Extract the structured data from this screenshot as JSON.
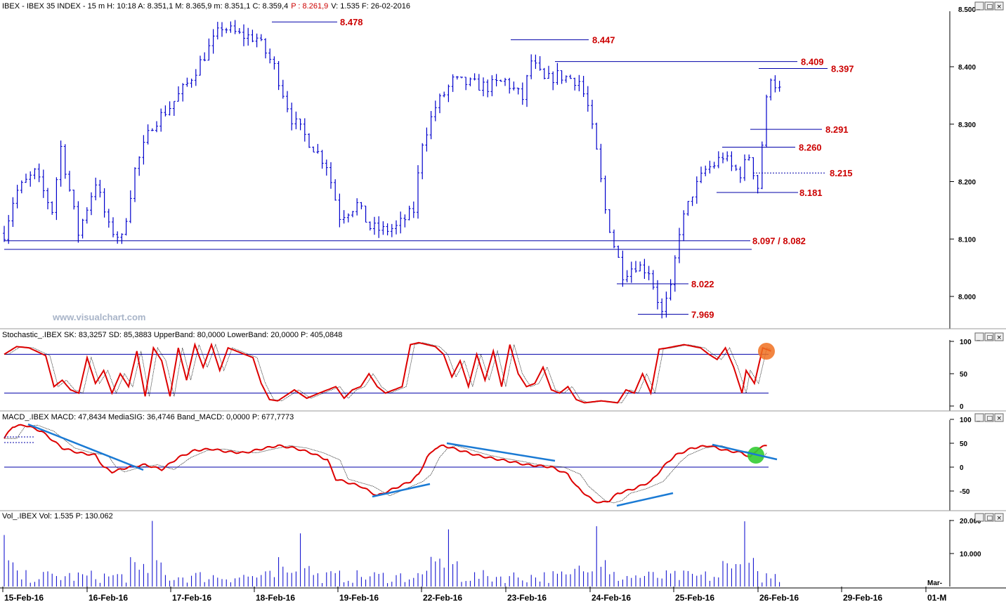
{
  "header": {
    "title": "IBEX - IBEX 35 INDEX -  15 m  H: 10:18  A: 8.351,1  M: 8.365,9  m: 8.351,1  C: 8.359,4",
    "pct": "P : 8.261,9",
    "rest": "V: 1.535  F: 26-02-2016"
  },
  "watermark": "www.visualchart.com",
  "colors": {
    "price_bars": "#0000cc",
    "level_lines": "#0000aa",
    "level_labels": "#cc0000",
    "indicator_main": "#dd0000",
    "indicator_signal": "#000000",
    "trendlines": "#1a7ad4",
    "stoch_marker": "#f07020",
    "macd_marker": "#33cc33"
  },
  "price_axis": [
    "8.500",
    "8.400",
    "8.300",
    "8.200",
    "8.100",
    "8.000"
  ],
  "levels": [
    "8.478",
    "8.447",
    "8.409",
    "8.397",
    "8.291",
    "8.260",
    "8.215",
    "8.181",
    "8.097 / 8.082",
    "8.022",
    "7.969"
  ],
  "dates": [
    "15-Feb-16",
    "16-Feb-16",
    "17-Feb-16",
    "18-Feb-16",
    "19-Feb-16",
    "22-Feb-16",
    "23-Feb-16",
    "24-Feb-16",
    "25-Feb-16",
    "26-Feb-16",
    "29-Feb-16",
    "01-M"
  ],
  "date_extra": "Mar-",
  "stochastic": {
    "title": "Stochastic_.IBEX SK: 83,3257  SD: 85,3883  UpperBand: 80,0000  LowerBand: 20,0000  P: 405,0848",
    "axis": [
      "100",
      "50",
      "0"
    ]
  },
  "macd": {
    "title": "MACD_.IBEX MACD: 47,8434  MediaSIG: 36,4746  Band_MACD: 0,0000  P: 677,7773",
    "axis": [
      "100",
      "50",
      "0",
      "-50"
    ]
  },
  "volume": {
    "title": "Vol_.IBEX Vol: 1.535  P: 130.062",
    "axis": [
      "20.000",
      "10.000"
    ]
  },
  "window_buttons": [
    "_",
    "□",
    "×"
  ],
  "chart_data": {
    "type": "ohlc",
    "interval": "15 m",
    "x": [
      "15-Feb-16",
      "16-Feb-16",
      "17-Feb-16",
      "18-Feb-16",
      "19-Feb-16",
      "22-Feb-16",
      "23-Feb-16",
      "24-Feb-16",
      "25-Feb-16",
      "26-Feb-16"
    ],
    "path": [
      [
        0,
        8110
      ],
      [
        2.5,
        8180
      ],
      [
        7,
        8215
      ],
      [
        11,
        8150
      ],
      [
        13,
        8260
      ],
      [
        17,
        8110
      ],
      [
        21,
        8200
      ],
      [
        24,
        8120
      ],
      [
        27,
        8100
      ],
      [
        30,
        8220
      ],
      [
        34,
        8300
      ],
      [
        38,
        8330
      ],
      [
        42,
        8370
      ],
      [
        46,
        8420
      ],
      [
        50,
        8470
      ],
      [
        54,
        8455
      ],
      [
        58,
        8450
      ],
      [
        62,
        8400
      ],
      [
        66,
        8310
      ],
      [
        70,
        8270
      ],
      [
        74,
        8230
      ],
      [
        77,
        8140
      ],
      [
        81,
        8160
      ],
      [
        84,
        8120
      ],
      [
        87,
        8115
      ],
      [
        90,
        8120
      ],
      [
        94,
        8150
      ],
      [
        96,
        8270
      ],
      [
        99,
        8330
      ],
      [
        103,
        8375
      ],
      [
        107,
        8370
      ],
      [
        111,
        8365
      ],
      [
        115,
        8375
      ],
      [
        119,
        8345
      ],
      [
        121,
        8410
      ],
      [
        124,
        8375
      ],
      [
        127,
        8385
      ],
      [
        130,
        8380
      ],
      [
        132,
        8375
      ],
      [
        134,
        8330
      ],
      [
        136,
        8250
      ],
      [
        138,
        8150
      ],
      [
        140,
        8090
      ],
      [
        142,
        8040
      ],
      [
        145,
        8055
      ],
      [
        148,
        8045
      ],
      [
        149,
        8020
      ],
      [
        151,
        7970
      ],
      [
        153,
        8010
      ],
      [
        155,
        8115
      ],
      [
        158,
        8180
      ],
      [
        161,
        8220
      ],
      [
        163,
        8230
      ],
      [
        165,
        8245
      ],
      [
        167,
        8225
      ],
      [
        169,
        8215
      ],
      [
        171,
        8245
      ],
      [
        173,
        8191
      ],
      [
        175,
        8340
      ],
      [
        176,
        8385
      ],
      [
        177,
        8370
      ],
      [
        178,
        8359
      ]
    ],
    "levels": [
      8478,
      8447,
      8409,
      8397,
      8291,
      8260,
      8215,
      8181,
      8097,
      8082,
      8022,
      7969
    ],
    "stochastic": {
      "sk_last": 83.3257,
      "sd_last": 85.3883,
      "upper_band": 80,
      "lower_band": 20,
      "ylim": [
        0,
        100
      ],
      "path": [
        [
          0,
          80
        ],
        [
          3,
          92
        ],
        [
          6,
          90
        ],
        [
          10,
          78
        ],
        [
          12,
          30
        ],
        [
          14,
          40
        ],
        [
          16,
          25
        ],
        [
          18,
          20
        ],
        [
          20,
          75
        ],
        [
          22,
          35
        ],
        [
          24,
          55
        ],
        [
          26,
          20
        ],
        [
          28,
          50
        ],
        [
          30,
          30
        ],
        [
          32,
          85
        ],
        [
          34,
          15
        ],
        [
          36,
          90
        ],
        [
          38,
          70
        ],
        [
          40,
          15
        ],
        [
          42,
          90
        ],
        [
          44,
          40
        ],
        [
          46,
          95
        ],
        [
          48,
          60
        ],
        [
          50,
          95
        ],
        [
          52,
          55
        ],
        [
          54,
          90
        ],
        [
          56,
          85
        ],
        [
          60,
          75
        ],
        [
          62,
          35
        ],
        [
          64,
          10
        ],
        [
          66,
          8
        ],
        [
          70,
          25
        ],
        [
          73,
          12
        ],
        [
          76,
          20
        ],
        [
          80,
          30
        ],
        [
          82,
          12
        ],
        [
          84,
          25
        ],
        [
          86,
          30
        ],
        [
          88,
          50
        ],
        [
          90,
          30
        ],
        [
          92,
          20
        ],
        [
          94,
          25
        ],
        [
          96,
          30
        ],
        [
          98,
          95
        ],
        [
          100,
          98
        ],
        [
          104,
          92
        ],
        [
          106,
          80
        ],
        [
          108,
          45
        ],
        [
          110,
          70
        ],
        [
          112,
          30
        ],
        [
          114,
          80
        ],
        [
          116,
          40
        ],
        [
          118,
          85
        ],
        [
          120,
          30
        ],
        [
          122,
          95
        ],
        [
          124,
          50
        ],
        [
          126,
          30
        ],
        [
          128,
          35
        ],
        [
          130,
          60
        ],
        [
          132,
          25
        ],
        [
          134,
          20
        ],
        [
          136,
          30
        ],
        [
          138,
          10
        ],
        [
          140,
          5
        ],
        [
          144,
          8
        ],
        [
          148,
          5
        ],
        [
          150,
          25
        ],
        [
          152,
          20
        ],
        [
          154,
          50
        ],
        [
          156,
          20
        ],
        [
          158,
          88
        ],
        [
          160,
          90
        ],
        [
          164,
          95
        ],
        [
          168,
          90
        ],
        [
          170,
          80
        ],
        [
          172,
          72
        ],
        [
          174,
          90
        ],
        [
          176,
          60
        ],
        [
          178,
          20
        ],
        [
          179,
          55
        ],
        [
          181,
          35
        ],
        [
          183,
          90
        ],
        [
          185,
          85
        ]
      ]
    },
    "macd": {
      "macd_last": 47.8434,
      "signal_last": 36.4746,
      "band": 0,
      "ylim": [
        -80,
        100
      ],
      "path": [
        [
          0,
          60
        ],
        [
          2,
          85
        ],
        [
          5,
          88
        ],
        [
          9,
          75
        ],
        [
          14,
          40
        ],
        [
          18,
          30
        ],
        [
          22,
          25
        ],
        [
          24,
          0
        ],
        [
          26,
          -10
        ],
        [
          28,
          -5
        ],
        [
          30,
          0
        ],
        [
          34,
          5
        ],
        [
          38,
          -5
        ],
        [
          42,
          20
        ],
        [
          46,
          35
        ],
        [
          50,
          38
        ],
        [
          54,
          32
        ],
        [
          58,
          30
        ],
        [
          62,
          38
        ],
        [
          66,
          45
        ],
        [
          70,
          40
        ],
        [
          74,
          30
        ],
        [
          78,
          15
        ],
        [
          80,
          -25
        ],
        [
          82,
          -30
        ],
        [
          86,
          -40
        ],
        [
          90,
          -60
        ],
        [
          94,
          -45
        ],
        [
          98,
          -30
        ],
        [
          100,
          -15
        ],
        [
          102,
          20
        ],
        [
          104,
          40
        ],
        [
          106,
          45
        ],
        [
          110,
          35
        ],
        [
          114,
          25
        ],
        [
          118,
          18
        ],
        [
          122,
          12
        ],
        [
          126,
          5
        ],
        [
          130,
          2
        ],
        [
          132,
          0
        ],
        [
          136,
          -15
        ],
        [
          138,
          -40
        ],
        [
          140,
          -55
        ],
        [
          142,
          -70
        ],
        [
          144,
          -75
        ],
        [
          146,
          -70
        ],
        [
          148,
          -55
        ],
        [
          152,
          -45
        ],
        [
          156,
          -30
        ],
        [
          160,
          10
        ],
        [
          162,
          25
        ],
        [
          166,
          40
        ],
        [
          170,
          45
        ],
        [
          174,
          35
        ],
        [
          178,
          30
        ],
        [
          180,
          20
        ],
        [
          182,
          40
        ],
        [
          184,
          45
        ]
      ]
    },
    "volume": {
      "last": 1535,
      "ylim": [
        0,
        20000
      ]
    }
  }
}
